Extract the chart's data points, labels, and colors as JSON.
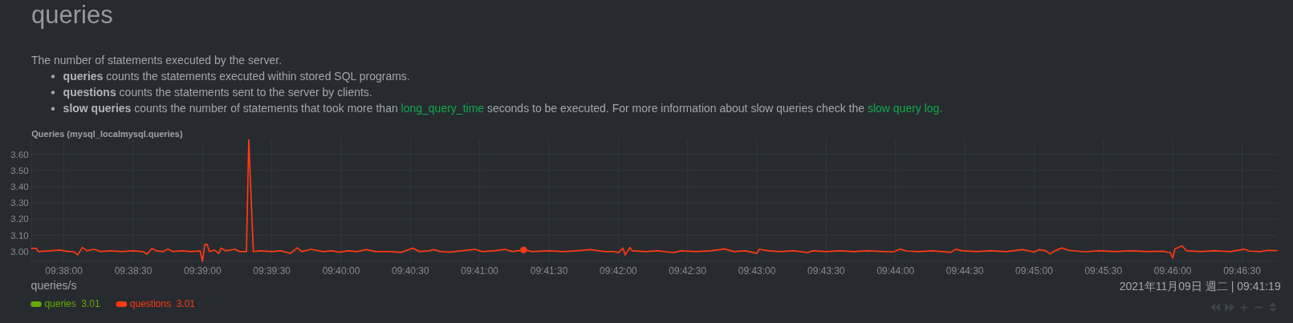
{
  "chart_data": {
    "type": "line",
    "title": "queries",
    "subtitle": "The number of statements executed by the server.",
    "annotations": [
      "queries",
      " counts the statements executed within stored SQL programs.",
      "questions",
      " counts the statements sent to the server by clients.",
      "slow queries",
      " counts the number of statements that took more than ",
      "long_query_time",
      " seconds to be executed. For more information about slow queries check the ",
      "slow query log.",
      "Queries (mysql_localmysql.queries)",
      "3.01",
      "3.01",
      "2021年11月09日 週二 | 09:41:19",
      "queries/s"
    ],
    "x": [
      9.62944,
      9.63,
      9.63028,
      9.63167,
      9.63278,
      9.63389,
      9.63444,
      9.635,
      9.63556,
      9.63611,
      9.63694,
      9.63778,
      9.63889,
      9.64028,
      9.64167,
      9.64278,
      9.64333,
      9.64389,
      9.64444,
      9.64528,
      9.64583,
      9.64639,
      9.6475,
      9.64861,
      9.64972,
      9.65,
      9.65028,
      9.65056,
      9.65083,
      9.65139,
      9.65167,
      9.65194,
      9.65222,
      9.65278,
      9.65389,
      9.65444,
      9.65528,
      9.65556,
      9.65611,
      9.65694,
      9.65833,
      9.65944,
      9.66056,
      9.66139,
      9.66194,
      9.66306,
      9.66444,
      9.66556,
      9.66639,
      9.6675,
      9.66861,
      9.66972,
      9.67083,
      9.6725,
      9.67389,
      9.67528,
      9.67611,
      9.67722,
      9.67778,
      9.67861,
      9.67972,
      9.68111,
      9.68278,
      9.68361,
      9.685,
      9.68639,
      9.68722,
      9.68861,
      9.68972,
      9.69167,
      9.69333,
      9.695,
      9.69667,
      9.69833,
      9.69944,
      9.7,
      9.70056,
      9.70083,
      9.70139,
      9.70167,
      9.70333,
      9.70472,
      9.70667,
      9.7075,
      9.70944,
      9.71111,
      9.71278,
      9.71389,
      9.71528,
      9.71667,
      9.71694,
      9.71806,
      9.71944,
      9.72111,
      9.72278,
      9.72333,
      9.725,
      9.72667,
      9.72833,
      9.73,
      9.73194,
      9.73306,
      9.73389,
      9.73472,
      9.73611,
      9.73778,
      9.74,
      9.74056,
      9.74139,
      9.74306,
      9.74472,
      9.74667,
      9.74861,
      9.75,
      9.75056,
      9.75139,
      9.75194,
      9.7525,
      9.75333,
      9.75417,
      9.75611,
      9.75778,
      9.75972,
      9.76167,
      9.76361,
      9.76556,
      9.76639,
      9.76667,
      9.76694,
      9.76722,
      9.76778,
      9.76833,
      9.77,
      9.77167,
      9.77361,
      9.77528,
      9.77583,
      9.77722,
      9.77806,
      9.77917
    ],
    "series": [
      {
        "name": "queries",
        "color": "#66aa00",
        "values": [
          null,
          null,
          null,
          null,
          null,
          null,
          null,
          null,
          null,
          null,
          null,
          null,
          null,
          null,
          null,
          null,
          null,
          null,
          null,
          null,
          null,
          null,
          null,
          null,
          null,
          null,
          null,
          null,
          null,
          null,
          null,
          null,
          null,
          null,
          null,
          null,
          null,
          null,
          null,
          null,
          null,
          null,
          null,
          null,
          null,
          null,
          null,
          null,
          null,
          null,
          null,
          null,
          null,
          null,
          null,
          null,
          null,
          null,
          null,
          null,
          null,
          null,
          null,
          null,
          null,
          null,
          null,
          null,
          null,
          null,
          null,
          null,
          null,
          null,
          null,
          null,
          null,
          null,
          null,
          null,
          null,
          null,
          null,
          null,
          null,
          null,
          null,
          null,
          null,
          null,
          null,
          null,
          null,
          null,
          null,
          null,
          null,
          null,
          null,
          null,
          null,
          null,
          null,
          null,
          null,
          null,
          null,
          null,
          null,
          null,
          null,
          null,
          null,
          null,
          null,
          null,
          null,
          null,
          null,
          null,
          null,
          null,
          null,
          null,
          null,
          null,
          null,
          null,
          null,
          null,
          null,
          null,
          null,
          null,
          null,
          null,
          null,
          null,
          null,
          null
        ]
      },
      {
        "name": "questions",
        "color": "#fe3912",
        "values": [
          3.02,
          3.02,
          3.0,
          3.005,
          3.01,
          3.0,
          3.0,
          2.98,
          3.026,
          3.005,
          3.014,
          3.0,
          3.005,
          3.0,
          3.005,
          3.0,
          2.984,
          3.019,
          3.005,
          3.0,
          3.016,
          3.0,
          3.005,
          3.0,
          3.004,
          2.94,
          3.044,
          3.044,
          3.0,
          3.009,
          3.0,
          2.988,
          3.021,
          3.005,
          3.014,
          3.0,
          3.0,
          3.69,
          3.0,
          3.005,
          3.0,
          3.005,
          2.988,
          3.023,
          3.0,
          3.014,
          3.0,
          3.005,
          2.996,
          3.005,
          3.0,
          3.012,
          3.0,
          3.0,
          2.995,
          3.021,
          3.0,
          3.005,
          3.012,
          3.0,
          2.996,
          3.005,
          3.014,
          3.0,
          3.005,
          3.014,
          3.0,
          3.01,
          3.0,
          3.005,
          3.0,
          3.005,
          3.012,
          3.0,
          3.0,
          2.993,
          3.021,
          2.979,
          3.025,
          3.005,
          3.0,
          3.005,
          2.993,
          3.005,
          3.0,
          3.005,
          3.016,
          3.0,
          3.005,
          2.989,
          3.014,
          3.005,
          3.0,
          3.005,
          2.993,
          3.005,
          3.0,
          3.005,
          3.0,
          3.005,
          3.0,
          2.998,
          3.015,
          3.003,
          3.0,
          3.005,
          2.995,
          3.015,
          3.005,
          3.0,
          3.005,
          3.0,
          3.012,
          2.997,
          3.012,
          3.005,
          2.985,
          3.005,
          3.022,
          3.008,
          2.998,
          3.005,
          3.0,
          3.005,
          3.0,
          3.002,
          2.992,
          2.96,
          3.018,
          3.022,
          3.035,
          3.005,
          3.0,
          3.005,
          3.0,
          3.015,
          3.003,
          3.0,
          3.008,
          3.006
        ]
      },
      {
        "type": "scatter",
        "color": "#fe3912",
        "x": [
          9.68861
        ],
        "values": [
          3.01
        ]
      }
    ],
    "xlim": [
      9.62944,
      9.77917
    ],
    "xticks": [
      {
        "value": 9.63333,
        "label": "09:38:00"
      },
      {
        "value": 9.64167,
        "label": "09:38:30"
      },
      {
        "value": 9.65,
        "label": "09:39:00"
      },
      {
        "value": 9.65833,
        "label": "09:39:30"
      },
      {
        "value": 9.66667,
        "label": "09:40:00"
      },
      {
        "value": 9.675,
        "label": "09:40:30"
      },
      {
        "value": 9.68333,
        "label": "09:41:00"
      },
      {
        "value": 9.69167,
        "label": "09:41:30"
      },
      {
        "value": 9.7,
        "label": "09:42:00"
      },
      {
        "value": 9.70833,
        "label": "09:42:30"
      },
      {
        "value": 9.71667,
        "label": "09:43:00"
      },
      {
        "value": 9.725,
        "label": "09:43:30"
      },
      {
        "value": 9.73333,
        "label": "09:44:00"
      },
      {
        "value": 9.74167,
        "label": "09:44:30"
      },
      {
        "value": 9.75,
        "label": "09:45:00"
      },
      {
        "value": 9.75833,
        "label": "09:45:30"
      },
      {
        "value": 9.76667,
        "label": "09:46:00"
      },
      {
        "value": 9.775,
        "label": "09:46:30"
      }
    ],
    "ylim": [
      2.94,
      3.69
    ],
    "yticks": [
      {
        "value": 3.0,
        "label": "3.00"
      },
      {
        "value": 3.1,
        "label": "3.10"
      },
      {
        "value": 3.2,
        "label": "3.20"
      },
      {
        "value": 3.3,
        "label": "3.30"
      },
      {
        "value": 3.4,
        "label": "3.40"
      },
      {
        "value": 3.5,
        "label": "3.50"
      },
      {
        "value": 3.6,
        "label": "3.60"
      }
    ],
    "grid": true,
    "legend": "bottom left"
  }
}
